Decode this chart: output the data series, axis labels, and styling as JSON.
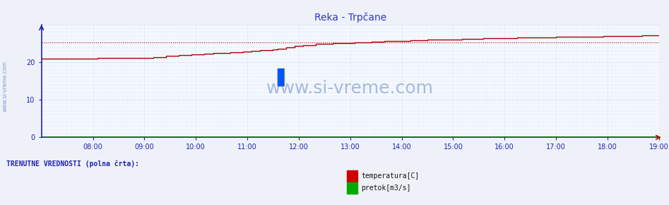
{
  "title": "Reka - Trpčane",
  "title_color": "#3333cc",
  "bg_color": "#eef2f8",
  "plot_bg_color": "#f4f8ff",
  "grid_color_h": "#aabbd0",
  "grid_color_v": "#e8b0b0",
  "axis_color": "#2222aa",
  "watermark": "www.si-vreme.com",
  "watermark_color": "#6688cc",
  "legend_label1": "temperatura[C]",
  "legend_label2": "pretok[m3/s]",
  "legend_color1": "#cc0000",
  "legend_color2": "#00aa00",
  "bottom_text": "TRENUTNE VREDNOSTI (polna črta):",
  "bottom_text_color": "#2222aa",
  "xmin": 0,
  "xmax": 144,
  "ymin": 0,
  "ymax": 30,
  "yticks": [
    0,
    10,
    20
  ],
  "xtick_labels": [
    "08:00",
    "09:00",
    "10:00",
    "11:00",
    "12:00",
    "13:00",
    "14:00",
    "15:00",
    "16:00",
    "17:00",
    "18:00",
    "19:00"
  ],
  "xtick_positions": [
    12,
    24,
    36,
    48,
    60,
    72,
    84,
    96,
    108,
    120,
    132,
    144
  ],
  "avg_line_y": 25.2,
  "avg_line_color": "#cc0000",
  "temp_color": "#aa0000",
  "pretok_color": "#007700"
}
